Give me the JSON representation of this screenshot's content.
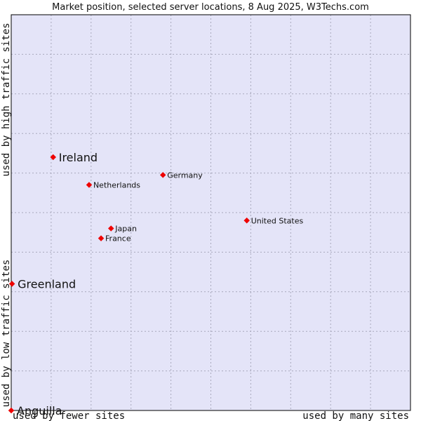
{
  "chart_data": {
    "type": "scatter",
    "title": "Market position, selected server locations, 8 Aug 2025, W3Techs.com",
    "x_low_label": "used by fewer sites",
    "x_high_label": "used by many sites",
    "y_low_label": "used by low traffic sites",
    "y_high_label": "used by high traffic sites",
    "xlim": [
      0,
      10
    ],
    "ylim": [
      0,
      10
    ],
    "grid": true,
    "points": [
      {
        "label": "Ireland",
        "x": 1.05,
        "y": 6.4,
        "emphasis": true
      },
      {
        "label": "Germany",
        "x": 3.8,
        "y": 5.95,
        "emphasis": false
      },
      {
        "label": "Netherlands",
        "x": 1.95,
        "y": 5.7,
        "emphasis": false
      },
      {
        "label": "United States",
        "x": 5.9,
        "y": 4.8,
        "emphasis": false
      },
      {
        "label": "Japan",
        "x": 2.5,
        "y": 4.6,
        "emphasis": false
      },
      {
        "label": "France",
        "x": 2.25,
        "y": 4.35,
        "emphasis": false
      },
      {
        "label": "Greenland",
        "x": 0.02,
        "y": 3.2,
        "emphasis": true
      },
      {
        "label": "Anguilla",
        "x": 0.0,
        "y": 0.0,
        "emphasis": true
      }
    ]
  },
  "colors": {
    "plot_background": "#e4e4f8",
    "grid": "#a8a8bc",
    "point": "#ee0000",
    "frame": "#000000"
  }
}
